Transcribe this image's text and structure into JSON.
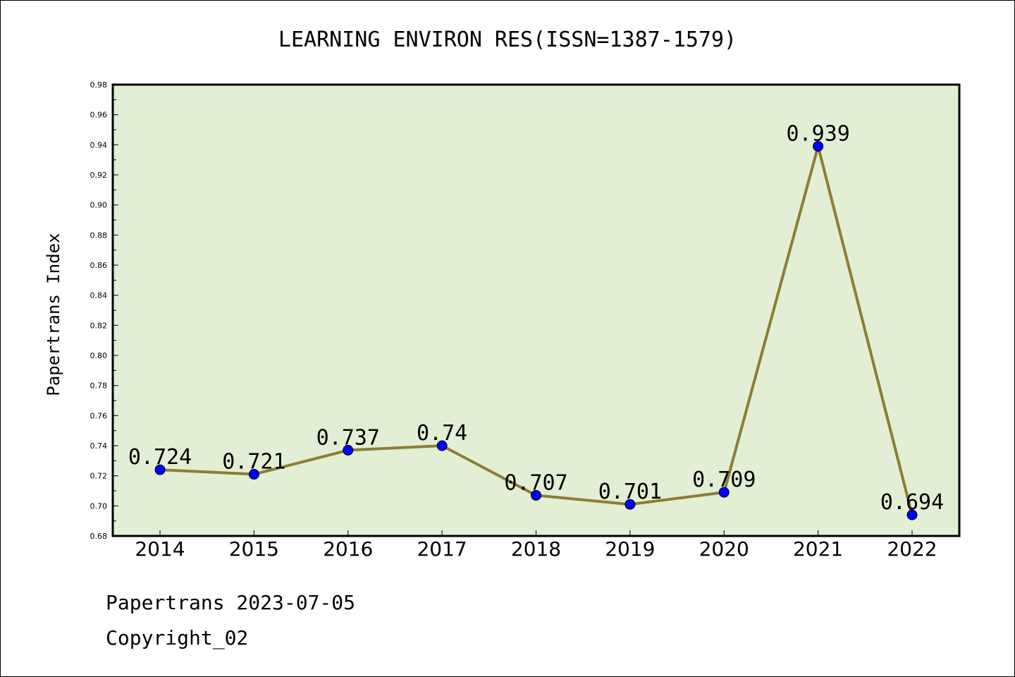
{
  "chart_data": {
    "type": "line",
    "title": "LEARNING ENVIRON RES(ISSN=1387-1579)",
    "xlabel": "",
    "ylabel": "Papertrans Index",
    "categories": [
      "2014",
      "2015",
      "2016",
      "2017",
      "2018",
      "2019",
      "2020",
      "2021",
      "2022"
    ],
    "series": [
      {
        "values": [
          0.724,
          0.721,
          0.737,
          0.74,
          0.707,
          0.701,
          0.709,
          0.939,
          0.694
        ],
        "labels": [
          "0.724",
          "0.721",
          "0.737",
          "0.74",
          "0.707",
          "0.701",
          "0.709",
          "0.939",
          "0.694"
        ]
      }
    ],
    "ylim": [
      0.68,
      0.98
    ],
    "yticks": [
      "0.68",
      "0.70",
      "0.72",
      "0.74",
      "0.76",
      "0.78",
      "0.80",
      "0.82",
      "0.84",
      "0.86",
      "0.88",
      "0.90",
      "0.92",
      "0.94",
      "0.96",
      "0.98"
    ],
    "grid": false,
    "legend": "none"
  },
  "footer": {
    "line1": "Papertrans 2023-07-05",
    "line2": "Copyright_02"
  },
  "colors": {
    "plot_bg": "#e2efd4",
    "line": "#8c7d37",
    "marker": "#0000ff"
  }
}
